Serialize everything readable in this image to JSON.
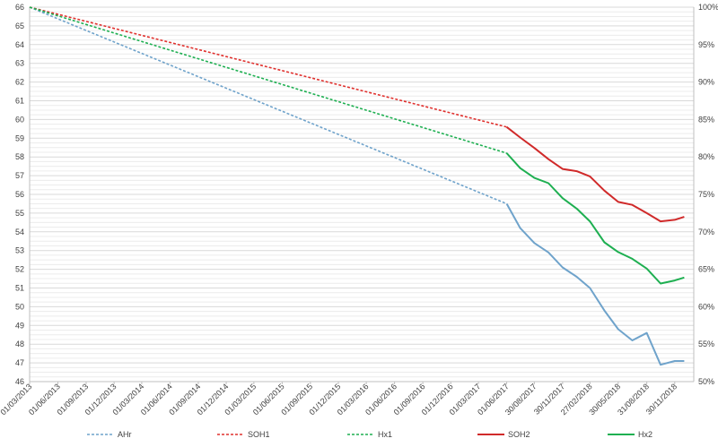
{
  "chart_data": {
    "type": "line",
    "title": "",
    "xlabel": "",
    "ylabel": "",
    "y_left": {
      "min": 46,
      "max": 66,
      "step": 1,
      "ticks": [
        "46",
        "47",
        "48",
        "49",
        "50",
        "51",
        "52",
        "53",
        "54",
        "55",
        "56",
        "57",
        "58",
        "59",
        "60",
        "61",
        "62",
        "63",
        "64",
        "65",
        "66"
      ]
    },
    "y_right": {
      "min": 50,
      "max": 100,
      "step": 5,
      "ticks": [
        "50%",
        "55%",
        "60%",
        "65%",
        "70%",
        "75%",
        "80%",
        "85%",
        "90%",
        "95%",
        "100%"
      ]
    },
    "x_ticks": [
      "01/03/2013",
      "01/06/2013",
      "01/09/2013",
      "01/12/2013",
      "01/03/2014",
      "01/06/2014",
      "01/09/2014",
      "01/12/2014",
      "01/03/2015",
      "01/06/2015",
      "01/09/2015",
      "01/12/2015",
      "01/03/2016",
      "01/06/2016",
      "01/09/2016",
      "01/12/2016",
      "01/03/2017",
      "01/06/2017",
      "30/08/2017",
      "30/11/2017",
      "27/02/2018",
      "30/05/2018",
      "31/08/2018",
      "30/11/2018"
    ],
    "grid": true,
    "legend_position": "bottom",
    "series": [
      {
        "name": "AHr",
        "color": "#6FA3CB",
        "dashed": true,
        "axis": "left",
        "x": [
          "01/03/2013",
          "01/06/2017"
        ],
        "y": [
          66,
          55.5
        ]
      },
      {
        "name": "SOH1",
        "color": "#E0312E",
        "dashed": true,
        "axis": "right",
        "x": [
          "01/03/2013",
          "01/06/2017"
        ],
        "y": [
          100,
          84
        ]
      },
      {
        "name": "Hx1",
        "color": "#1EAF51",
        "dashed": true,
        "axis": "right",
        "x": [
          "01/03/2013",
          "01/06/2017"
        ],
        "y": [
          100,
          80.5
        ]
      },
      {
        "name": "SOH2",
        "color": "#D02A2A",
        "dashed": false,
        "axis": "right",
        "x": [
          "01/06/2017",
          "15/07/2017",
          "30/08/2017",
          "15/10/2017",
          "30/11/2017",
          "15/01/2018",
          "27/02/2018",
          "15/04/2018",
          "30/05/2018",
          "15/07/2018",
          "31/08/2018",
          "15/10/2018",
          "30/11/2018",
          "31/12/2018"
        ],
        "y": [
          84,
          82.6,
          81.2,
          79.7,
          78.4,
          78.1,
          77.4,
          75.5,
          74,
          73.6,
          72.5,
          71.4,
          71.6,
          72
        ]
      },
      {
        "name": "Hx2",
        "color": "#1EAF51",
        "dashed": false,
        "axis": "right",
        "x": [
          "01/06/2017",
          "15/07/2017",
          "30/08/2017",
          "15/10/2017",
          "30/11/2017",
          "15/01/2018",
          "27/02/2018",
          "15/04/2018",
          "30/05/2018",
          "15/07/2018",
          "31/08/2018",
          "15/10/2018",
          "30/11/2018",
          "31/12/2018"
        ],
        "y": [
          80.5,
          78.5,
          77.2,
          76.5,
          74.5,
          73.1,
          71.4,
          68.6,
          67.3,
          66.4,
          65.1,
          63.1,
          63.5,
          63.9
        ]
      },
      {
        "name": "AHr",
        "color": "#6FA3CB",
        "dashed": false,
        "axis": "left",
        "legend": false,
        "x": [
          "01/06/2017",
          "15/07/2017",
          "30/08/2017",
          "15/10/2017",
          "30/11/2017",
          "15/01/2018",
          "27/02/2018",
          "15/04/2018",
          "30/05/2018",
          "15/07/2018",
          "31/08/2018",
          "15/10/2018",
          "30/11/2018",
          "31/12/2018"
        ],
        "y": [
          55.5,
          54.2,
          53.4,
          52.9,
          52.1,
          51.6,
          51,
          49.8,
          48.8,
          48.2,
          48.6,
          46.9,
          47.1,
          47.1
        ]
      }
    ]
  }
}
